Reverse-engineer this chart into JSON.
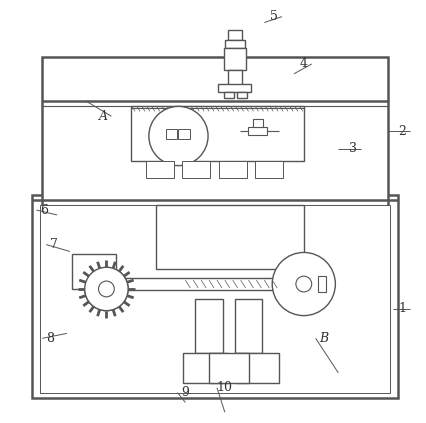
{
  "bg_color": "#ffffff",
  "line_color": "#555555",
  "lw": 1.0,
  "tlw": 1.8,
  "fig_width": 4.27,
  "fig_height": 4.23
}
